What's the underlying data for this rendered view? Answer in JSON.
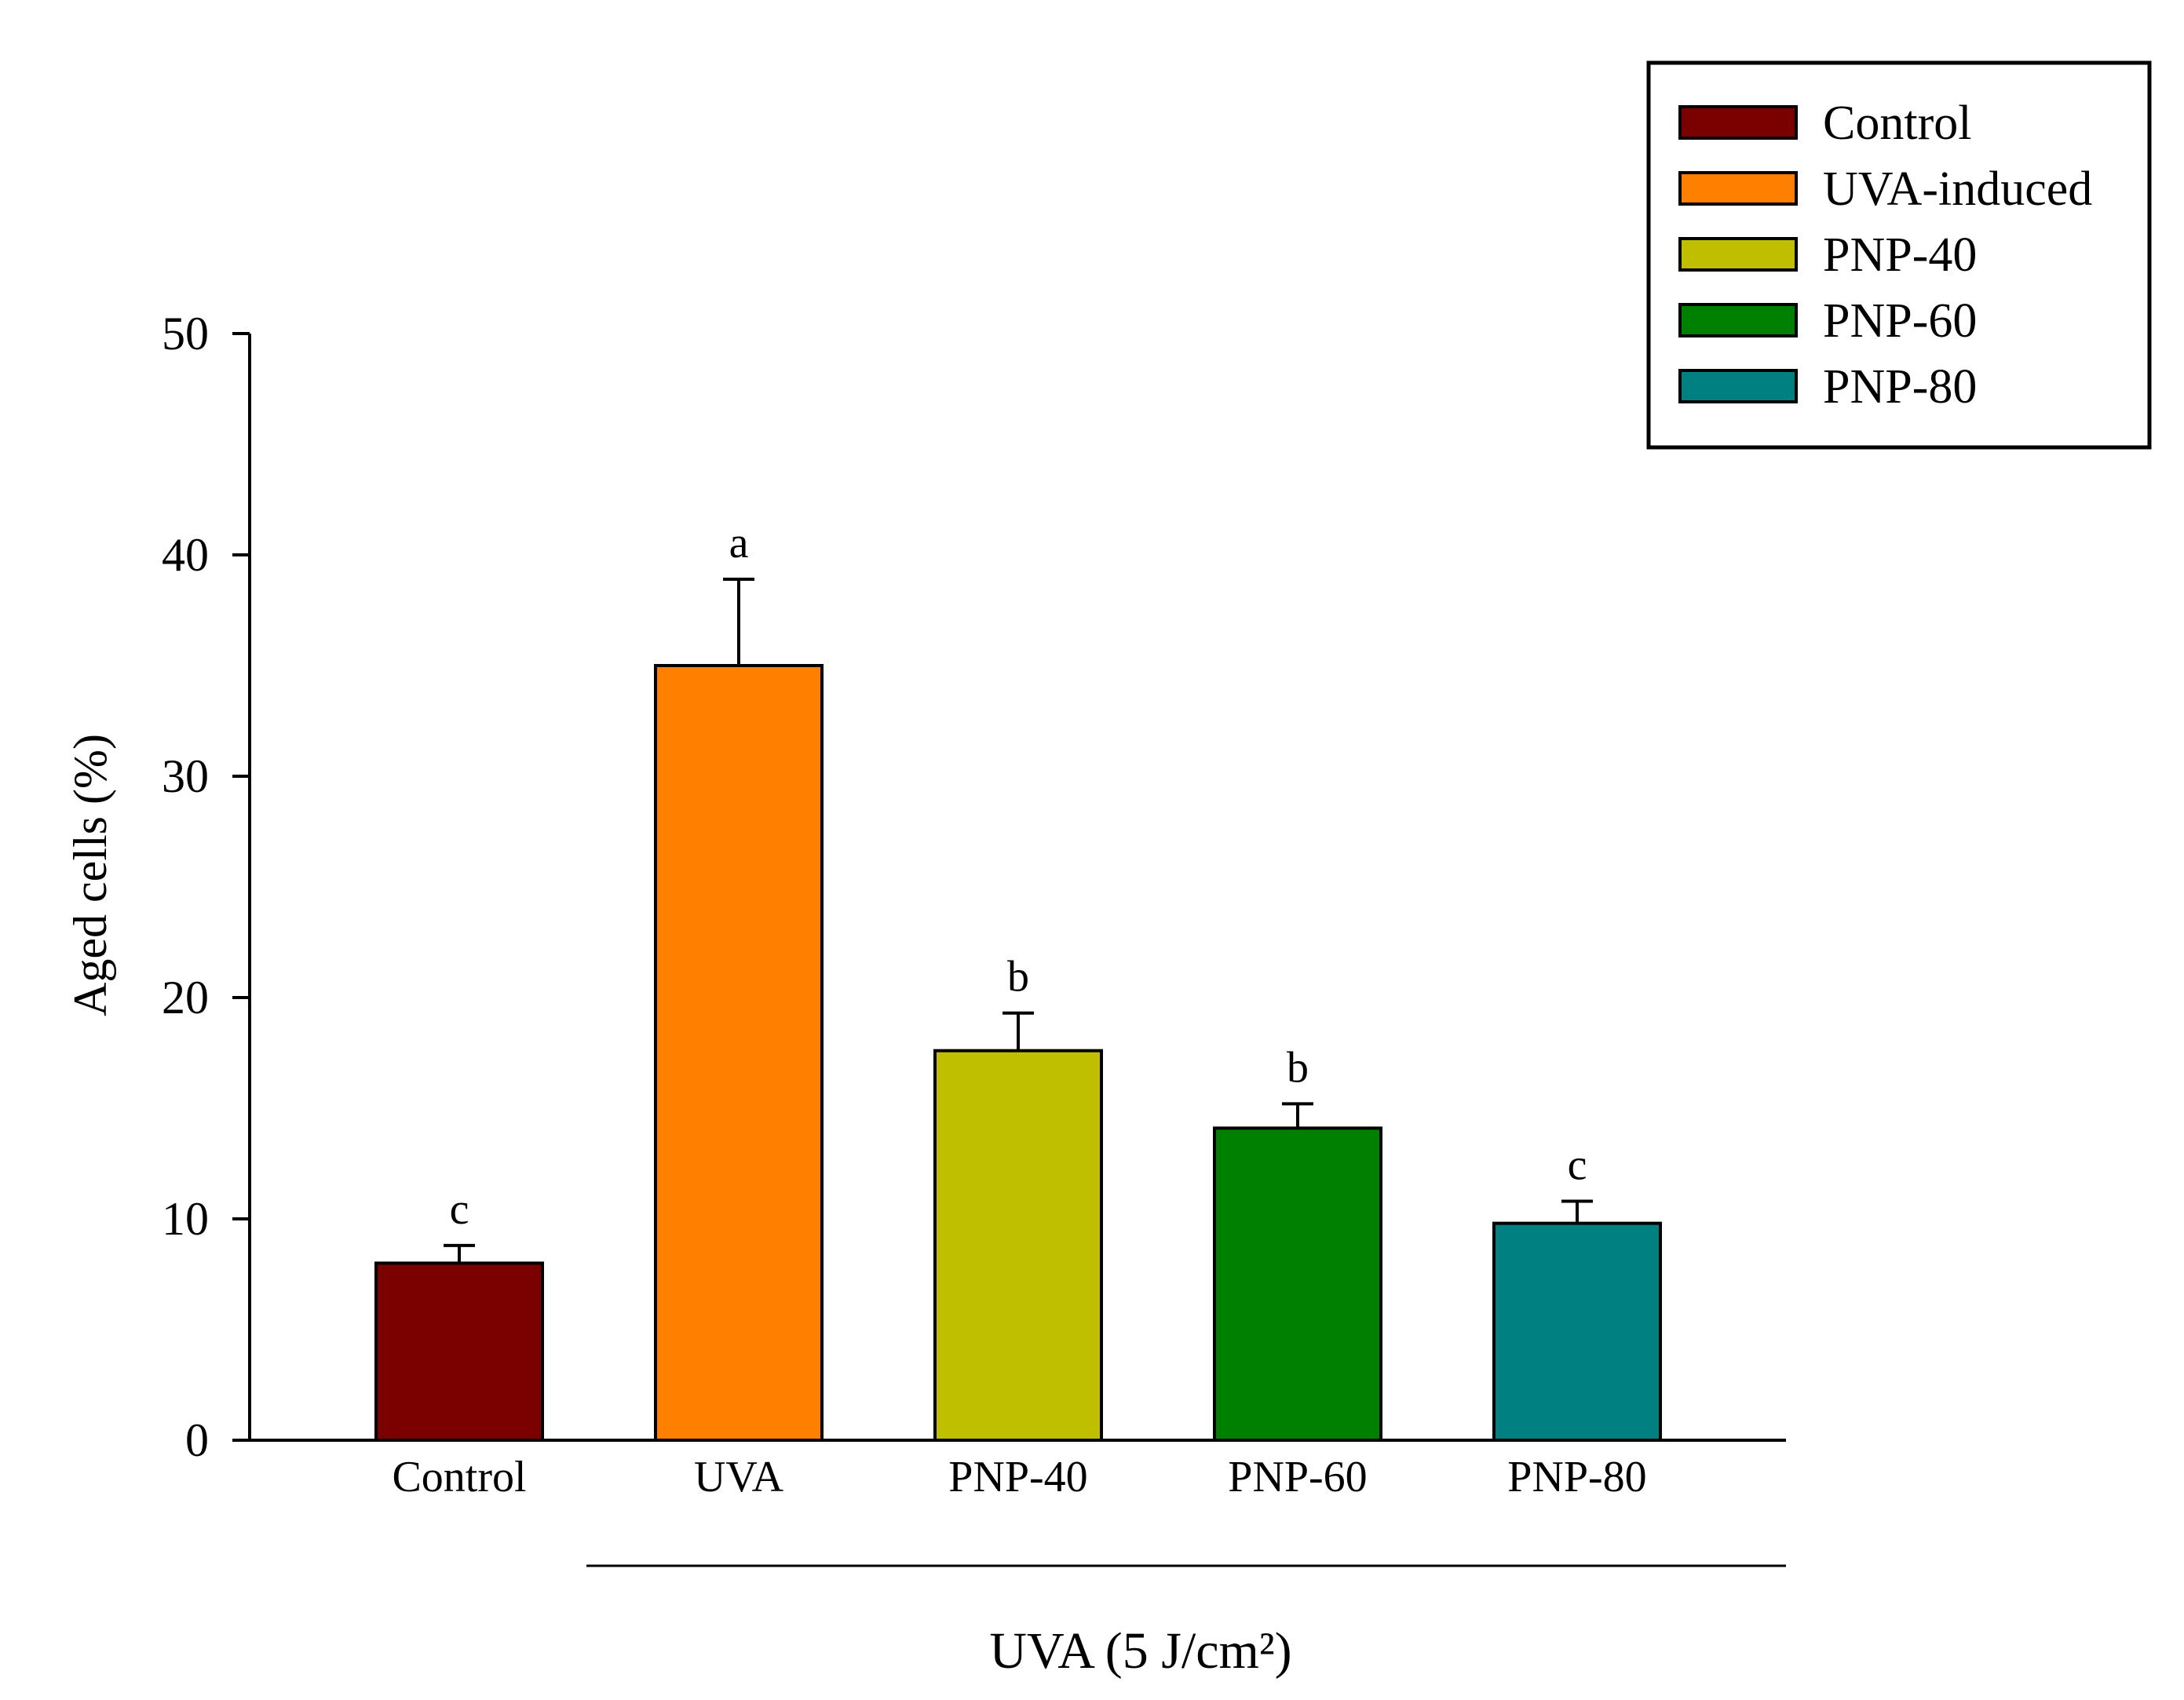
{
  "chart_data": {
    "type": "bar",
    "ylabel": "Aged cells (%)",
    "ylim": [
      0,
      50
    ],
    "yticks": [
      0,
      10,
      20,
      30,
      40,
      50
    ],
    "grid": false,
    "legend_position": "top-right",
    "categories": [
      "Control",
      "UVA",
      "PNP-40",
      "PNP-60",
      "PNP-80"
    ],
    "values": [
      8.0,
      35.0,
      17.6,
      14.1,
      9.8
    ],
    "errors": [
      0.8,
      3.9,
      1.7,
      1.1,
      1.0
    ],
    "significance": [
      "c",
      "a",
      "b",
      "b",
      "c"
    ],
    "colors": [
      "#7B0000",
      "#FF8000",
      "#BFBF00",
      "#008000",
      "#008080"
    ],
    "legend": [
      "Control",
      "UVA-induced",
      "PNP-40",
      "PNP-60",
      "PNP-80"
    ],
    "group_label": "UVA (5 J/cm²)"
  }
}
